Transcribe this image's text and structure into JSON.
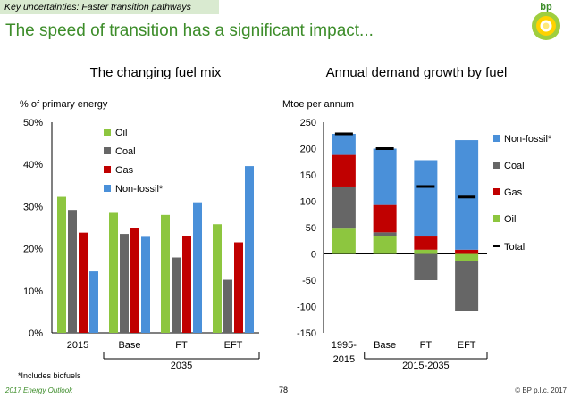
{
  "header": {
    "tag": "Key uncertainties: Faster transition pathways",
    "headline": "The speed of transition has a significant impact...",
    "logo_text": "bp"
  },
  "colors": {
    "oil": "#8dc63f",
    "coal": "#666666",
    "gas": "#c00000",
    "nonfossil": "#4a90d9",
    "total": "#000000",
    "brand_green": "#3d8d2a"
  },
  "footer": {
    "note": "*Includes biofuels",
    "left": "2017 Energy Outlook",
    "page": "78",
    "right": "© BP p.l.c. 2017"
  },
  "chart_data": [
    {
      "type": "bar",
      "title": "The changing fuel mix",
      "ylabel": "% of primary energy",
      "ylim": [
        0,
        50
      ],
      "yticks": [
        "0%",
        "10%",
        "20%",
        "30%",
        "40%",
        "50%"
      ],
      "categories": [
        "2015",
        "Base",
        "FT",
        "EFT"
      ],
      "group_label": "2035",
      "legend_position": "top-center",
      "series": [
        {
          "name": "Oil",
          "values": [
            32.3,
            28.5,
            28.0,
            25.8
          ]
        },
        {
          "name": "Coal",
          "values": [
            29.2,
            23.5,
            17.9,
            12.6
          ]
        },
        {
          "name": "Gas",
          "values": [
            23.8,
            25.0,
            23.0,
            21.5
          ]
        },
        {
          "name": "Non-fossil*",
          "values": [
            14.6,
            22.8,
            31.0,
            39.6
          ]
        }
      ]
    },
    {
      "type": "bar",
      "stacked": true,
      "title": "Annual demand growth by fuel",
      "ylabel": "Mtoe per annum",
      "ylim": [
        -150,
        250
      ],
      "yticks": [
        "250",
        "200",
        "150",
        "100",
        "50",
        "0",
        "-50",
        "-100",
        "-150"
      ],
      "categories": [
        "1995-2015",
        "Base",
        "FT",
        "EFT"
      ],
      "group_label": "2015-2035",
      "legend_position": "right",
      "series": [
        {
          "name": "Oil",
          "values": [
            48,
            33,
            8,
            -13
          ]
        },
        {
          "name": "Coal",
          "values": [
            80,
            8,
            -50,
            -95
          ]
        },
        {
          "name": "Gas",
          "values": [
            60,
            52,
            25,
            8
          ]
        },
        {
          "name": "Non-fossil*",
          "values": [
            40,
            107,
            145,
            208
          ]
        }
      ],
      "total": {
        "name": "Total",
        "values": [
          228,
          200,
          128,
          108
        ]
      }
    }
  ]
}
